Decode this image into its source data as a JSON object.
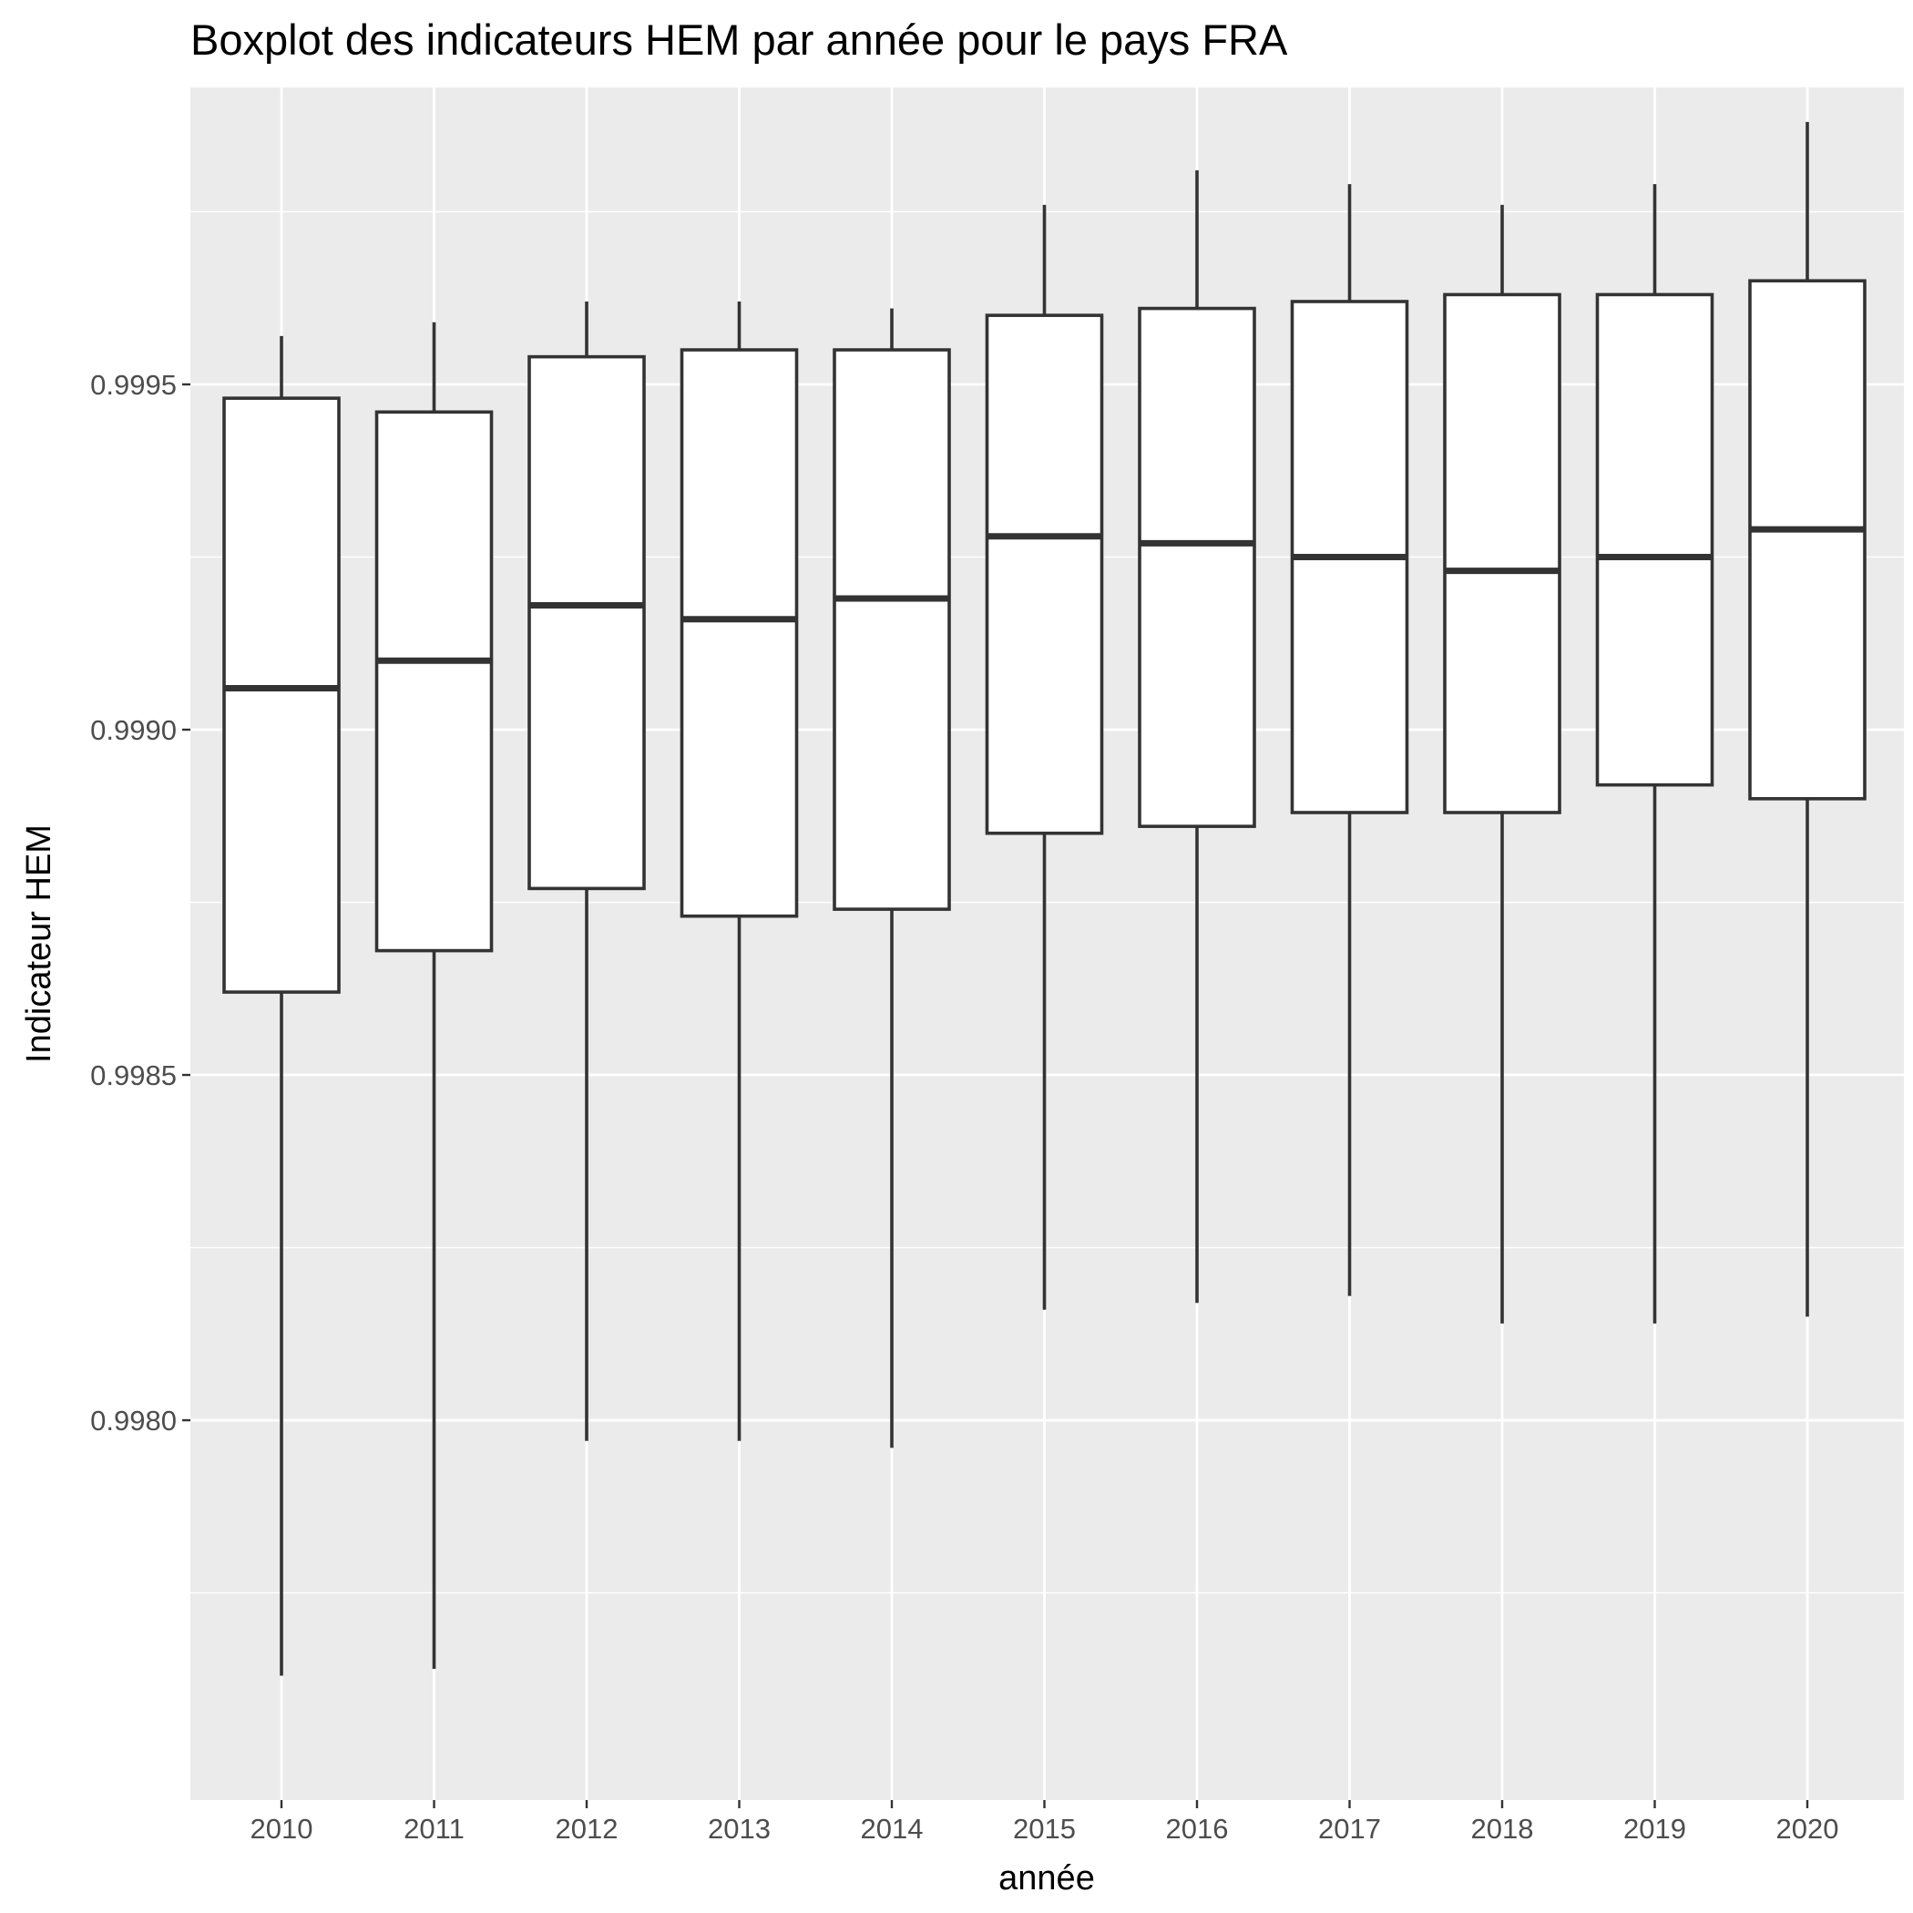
{
  "chart_data": {
    "type": "boxplot",
    "title": "Boxplot des indicateurs HEM par année pour le pays FRA",
    "xlabel": "année",
    "ylabel": "Indicateur HEM",
    "ylim": [
      0.99745,
      0.99993
    ],
    "yticks": [
      0.998,
      0.9985,
      0.999,
      0.9995
    ],
    "ytick_labels": [
      "0.9980",
      "0.9985",
      "0.9990",
      "0.9995"
    ],
    "grid": true,
    "categories": [
      "2010",
      "2011",
      "2012",
      "2013",
      "2014",
      "2015",
      "2016",
      "2017",
      "2018",
      "2019",
      "2020"
    ],
    "boxes": [
      {
        "label": "2010",
        "min": 0.99763,
        "q1": 0.99862,
        "median": 0.99906,
        "q3": 0.99948,
        "max": 0.99957
      },
      {
        "label": "2011",
        "min": 0.99764,
        "q1": 0.99868,
        "median": 0.9991,
        "q3": 0.99946,
        "max": 0.99959
      },
      {
        "label": "2012",
        "min": 0.99797,
        "q1": 0.99877,
        "median": 0.99918,
        "q3": 0.99954,
        "max": 0.99962
      },
      {
        "label": "2013",
        "min": 0.99797,
        "q1": 0.99873,
        "median": 0.99916,
        "q3": 0.99955,
        "max": 0.99962
      },
      {
        "label": "2014",
        "min": 0.99796,
        "q1": 0.99874,
        "median": 0.99919,
        "q3": 0.99955,
        "max": 0.99961
      },
      {
        "label": "2015",
        "min": 0.99816,
        "q1": 0.99885,
        "median": 0.99928,
        "q3": 0.9996,
        "max": 0.99976
      },
      {
        "label": "2016",
        "min": 0.99817,
        "q1": 0.99886,
        "median": 0.99927,
        "q3": 0.99961,
        "max": 0.99981
      },
      {
        "label": "2017",
        "min": 0.99818,
        "q1": 0.99888,
        "median": 0.99925,
        "q3": 0.99962,
        "max": 0.99979
      },
      {
        "label": "2018",
        "min": 0.99814,
        "q1": 0.99888,
        "median": 0.99923,
        "q3": 0.99963,
        "max": 0.99976
      },
      {
        "label": "2019",
        "min": 0.99814,
        "q1": 0.99892,
        "median": 0.99925,
        "q3": 0.99963,
        "max": 0.99979
      },
      {
        "label": "2020",
        "min": 0.99815,
        "q1": 0.9989,
        "median": 0.99929,
        "q3": 0.99965,
        "max": 0.99988
      }
    ],
    "colors": {
      "panel_background": "#ebebeb",
      "grid": "#ffffff",
      "box_fill": "#ffffff",
      "box_outline": "#333333",
      "tick_label": "#4d4d4d"
    }
  }
}
